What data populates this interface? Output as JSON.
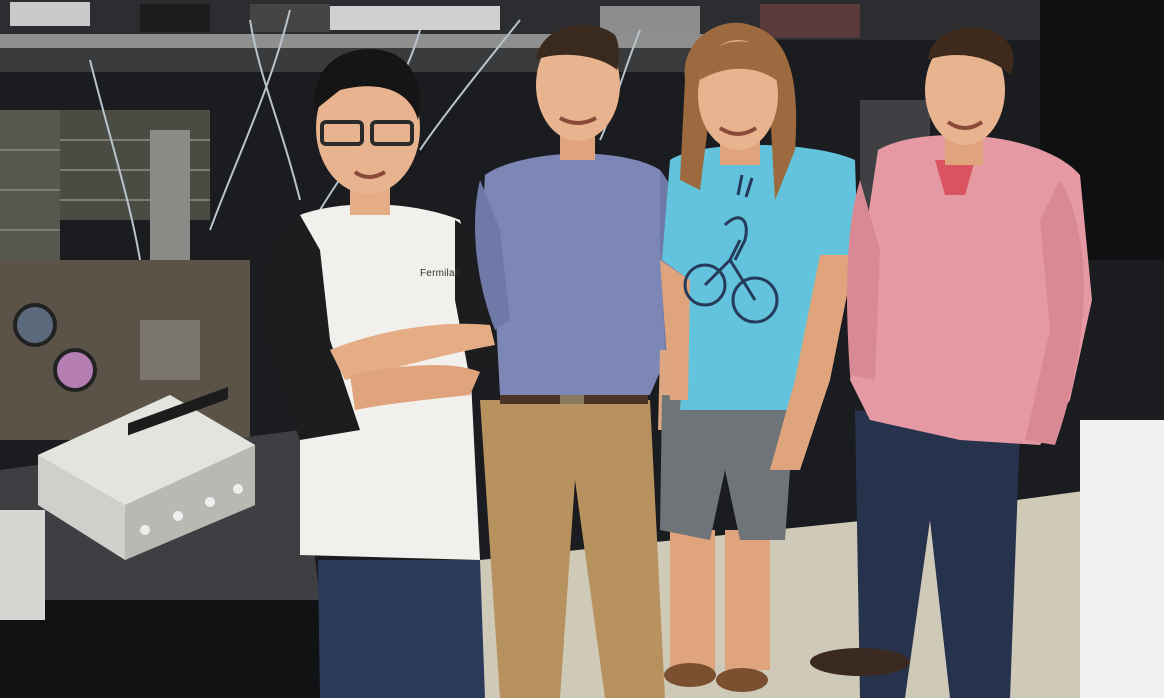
{
  "photo": {
    "shirt_logo_text": "Fermilab",
    "colors": {
      "bg_dark": "#1a1c1f",
      "shelf": "#8f8f8d",
      "floor": "#cfc9b8",
      "white_shirt": "#f2f0ec",
      "black_sleeve": "#1d1d20",
      "blue_shirt": "#7d87b5",
      "khaki": "#b8925e",
      "teal_shirt": "#63c3dc",
      "gray_shorts": "#6f7479",
      "pink_shirt": "#e59aa3",
      "jeans": "#27324d",
      "skin": "#e8b48f"
    }
  }
}
